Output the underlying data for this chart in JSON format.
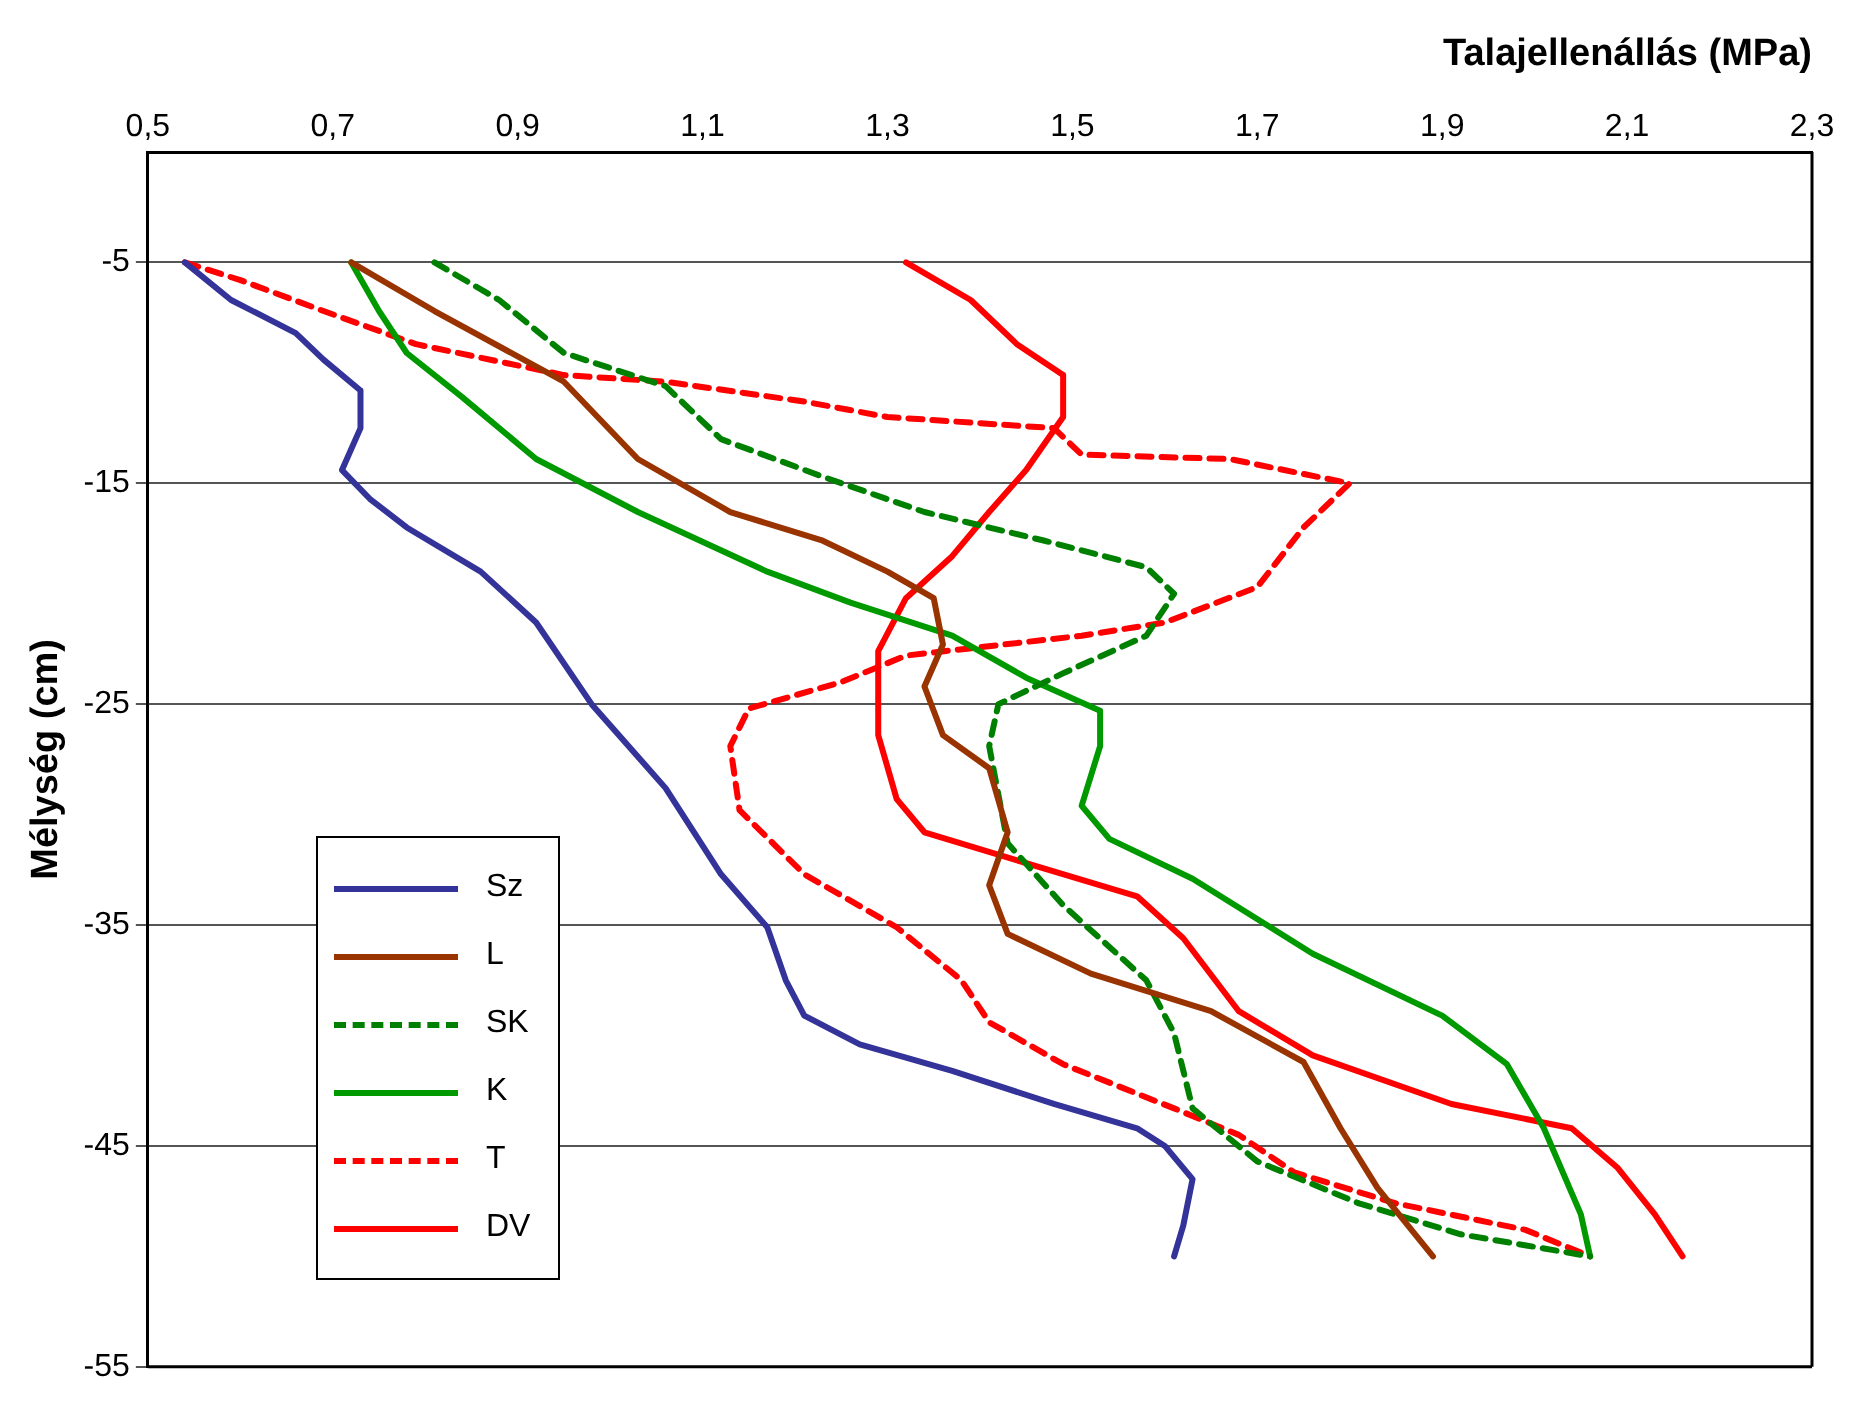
{
  "chart_data": {
    "type": "line",
    "xlabel": "Talajellenállás (MPa)",
    "ylabel": "Mélység (cm)",
    "xlim": [
      0.5,
      2.3
    ],
    "xticks": [
      {
        "value": 0.5,
        "label": "0,5"
      },
      {
        "value": 0.7,
        "label": "0,7"
      },
      {
        "value": 0.9,
        "label": "0,9"
      },
      {
        "value": 1.1,
        "label": "1,1"
      },
      {
        "value": 1.3,
        "label": "1,3"
      },
      {
        "value": 1.5,
        "label": "1,5"
      },
      {
        "value": 1.7,
        "label": "1,7"
      },
      {
        "value": 1.9,
        "label": "1,9"
      },
      {
        "value": 2.1,
        "label": "2,1"
      },
      {
        "value": 2.3,
        "label": "2,3"
      }
    ],
    "ylim": [
      -55,
      0
    ],
    "yticks": [
      -5,
      -15,
      -25,
      -35,
      -45,
      -55
    ],
    "grid": "y",
    "legend": "left",
    "marker": "none",
    "series": [
      {
        "name": "Sz",
        "color": "#333399",
        "line_style": "solid",
        "x": [
          0.54,
          0.59,
          0.66,
          0.69,
          0.73,
          0.73,
          0.71,
          0.74,
          0.78,
          0.86,
          0.92,
          0.98,
          1.06,
          1.12,
          1.17,
          1.19,
          1.21,
          1.27,
          1.37,
          1.48,
          1.57,
          1.6,
          1.63,
          1.62,
          1.61
        ],
        "values": [
          -5,
          -6.7,
          -8.2,
          -9.4,
          -10.8,
          -12.5,
          -14.4,
          -15.7,
          -17,
          -19,
          -21.3,
          -25,
          -28.8,
          -32.7,
          -35.1,
          -37.5,
          -39.1,
          -40.4,
          -41.6,
          -43.1,
          -44.2,
          -45,
          -46.5,
          -48.6,
          -50
        ]
      },
      {
        "name": "L",
        "color": "#993300",
        "line_style": "solid",
        "x": [
          0.72,
          0.81,
          0.95,
          1.03,
          1.13,
          1.23,
          1.3,
          1.35,
          1.36,
          1.34,
          1.36,
          1.41,
          1.43,
          1.41,
          1.43,
          1.52,
          1.65,
          1.75,
          1.79,
          1.83,
          1.89
        ],
        "values": [
          -5,
          -7.2,
          -10.4,
          -13.9,
          -16.3,
          -17.6,
          -19,
          -20.2,
          -22.3,
          -24.2,
          -26.4,
          -27.9,
          -30.8,
          -33.2,
          -35.4,
          -37.2,
          -38.9,
          -41.2,
          -44.2,
          -46.9,
          -50
        ]
      },
      {
        "name": "SK",
        "color": "#008000",
        "line_style": "dashed",
        "x": [
          0.81,
          0.88,
          0.95,
          1.06,
          1.12,
          1.23,
          1.34,
          1.47,
          1.58,
          1.61,
          1.58,
          1.49,
          1.42,
          1.41,
          1.43,
          1.49,
          1.58,
          1.61,
          1.63,
          1.7,
          1.81,
          1.92,
          2.06
        ],
        "values": [
          -5,
          -6.7,
          -9.1,
          -10.6,
          -13,
          -14.7,
          -16.3,
          -17.6,
          -18.8,
          -20,
          -21.9,
          -23.6,
          -25,
          -26.9,
          -31.3,
          -34.1,
          -37.5,
          -39.9,
          -43.3,
          -45.7,
          -47.6,
          -49,
          -50
        ]
      },
      {
        "name": "K",
        "color": "#009900",
        "line_style": "solid",
        "x": [
          0.72,
          0.75,
          0.78,
          0.84,
          0.92,
          1.03,
          1.17,
          1.26,
          1.37,
          1.45,
          1.53,
          1.53,
          1.51,
          1.54,
          1.63,
          1.76,
          1.9,
          1.97,
          2.01,
          2.05,
          2.06
        ],
        "values": [
          -5,
          -7.2,
          -9.1,
          -11.1,
          -13.9,
          -16.3,
          -19,
          -20.4,
          -21.9,
          -23.8,
          -25.3,
          -26.9,
          -29.6,
          -31.1,
          -32.9,
          -36.3,
          -39.1,
          -41.3,
          -44.2,
          -48.1,
          -50
        ]
      },
      {
        "name": "T",
        "color": "#ff0000",
        "line_style": "dashed",
        "x": [
          0.54,
          0.6,
          0.69,
          0.79,
          0.95,
          1.06,
          1.21,
          1.3,
          1.48,
          1.51,
          1.67,
          1.8,
          1.75,
          1.7,
          1.6,
          1.51,
          1.32,
          1.25,
          1.15,
          1.13,
          1.14,
          1.21,
          1.31,
          1.38,
          1.41,
          1.49,
          1.61,
          1.68,
          1.74,
          1.85,
          1.99,
          2.06
        ],
        "values": [
          -5,
          -5.8,
          -7.2,
          -8.7,
          -10.1,
          -10.4,
          -11.3,
          -12,
          -12.5,
          -13.7,
          -13.9,
          -15,
          -17,
          -19.7,
          -21.3,
          -21.9,
          -22.8,
          -24,
          -25.2,
          -26.9,
          -29.8,
          -32.7,
          -35.1,
          -37.5,
          -39.4,
          -41.3,
          -43.3,
          -44.5,
          -46.2,
          -47.6,
          -48.8,
          -50
        ]
      },
      {
        "name": "DV",
        "color": "#ff0000",
        "line_style": "solid",
        "x": [
          1.32,
          1.39,
          1.44,
          1.49,
          1.49,
          1.45,
          1.41,
          1.37,
          1.32,
          1.29,
          1.29,
          1.31,
          1.34,
          1.45,
          1.57,
          1.62,
          1.68,
          1.76,
          1.91,
          2.04,
          2.09,
          2.13,
          2.16
        ],
        "values": [
          -5,
          -6.7,
          -8.7,
          -10.1,
          -12,
          -14.4,
          -16.3,
          -18.3,
          -20.2,
          -22.6,
          -26.4,
          -29.3,
          -30.8,
          -32.2,
          -33.7,
          -35.6,
          -38.9,
          -40.9,
          -43.1,
          -44.2,
          -46,
          -48.1,
          -50
        ]
      }
    ]
  }
}
